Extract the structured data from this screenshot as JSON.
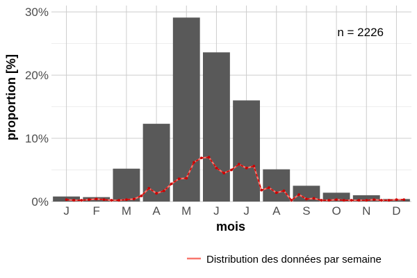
{
  "chart_data": {
    "type": "bar",
    "xlabel": "mois",
    "ylabel": "proportion [%]",
    "ylim": [
      0,
      31
    ],
    "y_ticks": [
      0,
      10,
      20,
      30
    ],
    "y_tick_labels": [
      "0%",
      "10%",
      "20%",
      "30%"
    ],
    "grid": true,
    "legend_position": "bottom-right",
    "categories": [
      "J",
      "F",
      "M",
      "A",
      "M",
      "J",
      "J",
      "A",
      "S",
      "O",
      "N",
      "D"
    ],
    "series": [
      {
        "type": "bar",
        "values": [
          0.8,
          0.7,
          5.2,
          12.3,
          29.1,
          23.6,
          16.0,
          5.1,
          2.5,
          1.4,
          1.0,
          0.4
        ],
        "color": "#595959"
      },
      {
        "type": "line",
        "name": "Distribution des données par semaine",
        "x": [
          1.0,
          1.25,
          1.5,
          1.75,
          2.0,
          2.25,
          2.5,
          2.75,
          3.0,
          3.25,
          3.5,
          3.75,
          4.0,
          4.25,
          4.5,
          4.75,
          5.0,
          5.25,
          5.5,
          5.75,
          6.0,
          6.25,
          6.5,
          6.75,
          7.0,
          7.25,
          7.5,
          7.75,
          8.0,
          8.25,
          8.5,
          8.75,
          9.0,
          9.25,
          9.5,
          9.75,
          10.0,
          10.25,
          10.5,
          10.75,
          11.0,
          11.25,
          11.5,
          11.75,
          12.0,
          12.25
        ],
        "values": [
          0.3,
          0.2,
          0.2,
          0.3,
          0.4,
          0.3,
          0.2,
          0.2,
          0.3,
          0.4,
          0.9,
          2.1,
          1.3,
          1.7,
          2.8,
          3.6,
          3.7,
          6.2,
          6.9,
          7.0,
          5.3,
          4.5,
          5.0,
          5.9,
          5.3,
          5.6,
          1.8,
          2.2,
          1.4,
          1.7,
          0.2,
          1.1,
          0.4,
          0.5,
          0.2,
          0.2,
          0.3,
          0.2,
          0.2,
          0.2,
          0.2,
          0.3,
          0.2,
          0.2,
          0.3,
          0.3
        ],
        "color": "#f8766d",
        "point_color": "#cc0000"
      }
    ],
    "annotations": [
      {
        "text": "n = 2226"
      }
    ]
  }
}
